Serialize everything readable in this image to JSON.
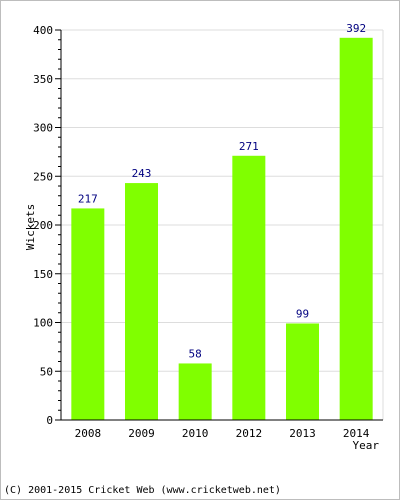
{
  "chart_data": {
    "type": "bar",
    "title": "",
    "xlabel": "Year",
    "ylabel": "Wickets",
    "categories": [
      "2008",
      "2009",
      "2010",
      "2012",
      "2013",
      "2014"
    ],
    "values": [
      217,
      243,
      58,
      271,
      99,
      392
    ],
    "data_labels": [
      "217",
      "243",
      "58",
      "271",
      "99",
      "392"
    ],
    "ylim": [
      0,
      400
    ],
    "yticks": [
      0,
      50,
      100,
      150,
      200,
      250,
      300,
      350,
      400
    ],
    "grid": true,
    "legend": "none",
    "bar_color": "#80ff00",
    "label_color": "#000080"
  },
  "footer": {
    "copyright": "(C) 2001-2015 Cricket Web (www.cricketweb.net)"
  }
}
